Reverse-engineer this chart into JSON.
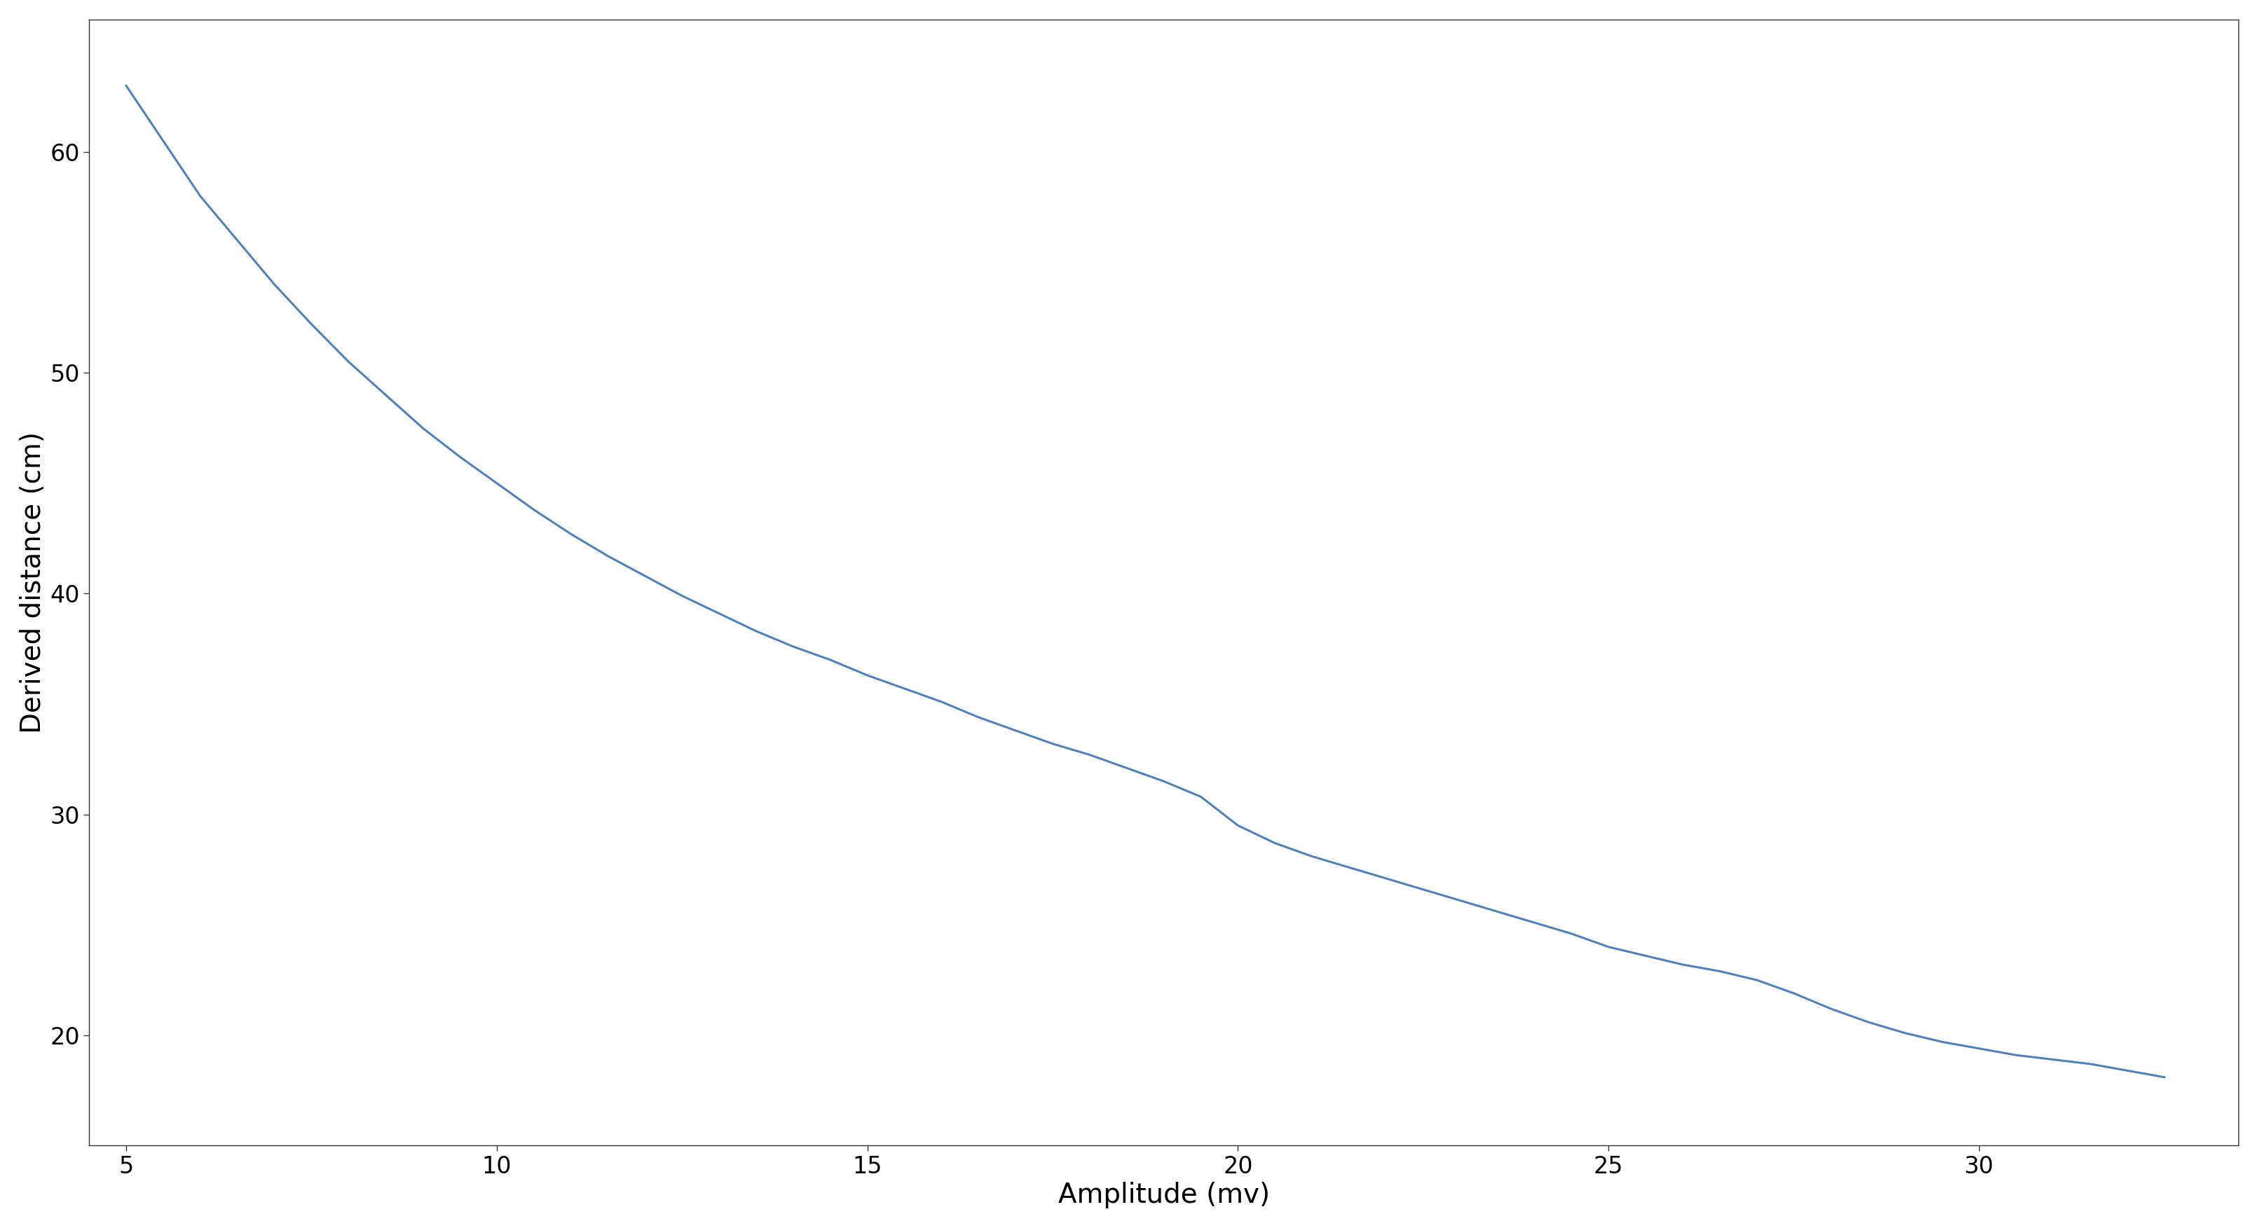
{
  "title": "",
  "xlabel": "Amplitude (mv)",
  "ylabel": "Derived distance (cm)",
  "line_color": "#4f81bd",
  "line_width": 2.2,
  "background_color": "#ffffff",
  "xlim": [
    4.5,
    33.5
  ],
  "ylim": [
    15,
    66
  ],
  "xticks": [
    5,
    10,
    15,
    20,
    25,
    30
  ],
  "yticks": [
    20,
    30,
    40,
    50,
    60
  ],
  "x_data": [
    5.0,
    5.5,
    6.0,
    6.5,
    7.0,
    7.5,
    8.0,
    8.5,
    9.0,
    9.5,
    10.0,
    10.5,
    11.0,
    11.5,
    12.0,
    12.5,
    13.0,
    13.5,
    14.0,
    14.5,
    15.0,
    15.5,
    16.0,
    16.5,
    17.0,
    17.5,
    18.0,
    18.5,
    19.0,
    19.5,
    20.0,
    20.5,
    21.0,
    21.5,
    22.0,
    22.5,
    23.0,
    23.5,
    24.0,
    24.5,
    25.0,
    25.5,
    26.0,
    26.5,
    27.0,
    27.5,
    28.0,
    28.5,
    29.0,
    29.5,
    30.0,
    30.5,
    31.0,
    31.5,
    32.0,
    32.5
  ],
  "y_data": [
    63.0,
    60.5,
    58.0,
    56.0,
    54.0,
    52.2,
    50.5,
    49.0,
    47.5,
    46.2,
    45.0,
    43.8,
    42.7,
    41.7,
    40.8,
    39.9,
    39.1,
    38.3,
    37.6,
    37.0,
    36.3,
    35.7,
    35.1,
    34.4,
    33.8,
    33.2,
    32.7,
    32.1,
    31.5,
    30.8,
    29.5,
    28.7,
    28.1,
    27.6,
    27.1,
    26.6,
    26.1,
    25.6,
    25.1,
    24.6,
    24.0,
    23.6,
    23.2,
    22.9,
    22.5,
    21.9,
    21.2,
    20.6,
    20.1,
    19.7,
    19.4,
    19.1,
    18.9,
    18.7,
    18.4,
    18.1
  ]
}
